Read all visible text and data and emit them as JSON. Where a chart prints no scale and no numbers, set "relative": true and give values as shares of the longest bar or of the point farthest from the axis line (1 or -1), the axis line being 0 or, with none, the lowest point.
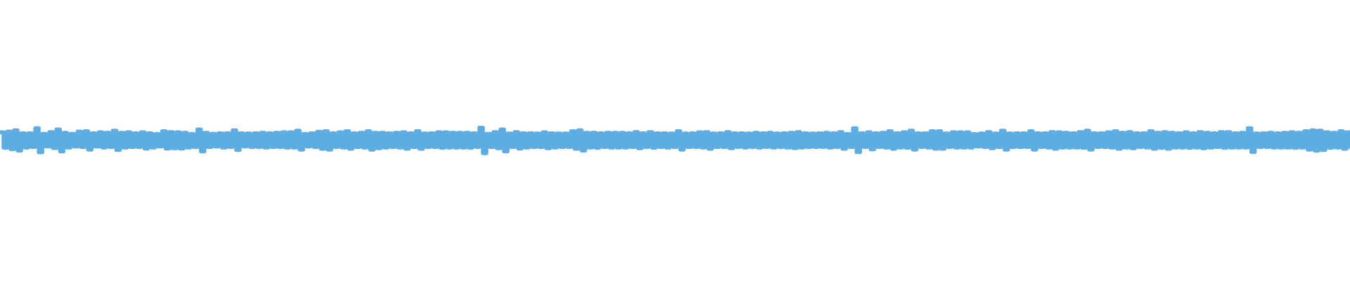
{
  "chart_data": {
    "type": "step",
    "relative": true,
    "color": "#5dade2",
    "categories": [
      null,
      null,
      null,
      null,
      null,
      null,
      null,
      null,
      null,
      null,
      null,
      null,
      null,
      null,
      null,
      null,
      null,
      null,
      null,
      null,
      null,
      null,
      null,
      null,
      null,
      null,
      null,
      null,
      null,
      null,
      null,
      null,
      null,
      null,
      null,
      null,
      null,
      null,
      null,
      null,
      null,
      null,
      null,
      null,
      null,
      null,
      null,
      null,
      null,
      null,
      null,
      null,
      null,
      null,
      null,
      null,
      null,
      null,
      null,
      null,
      null,
      null,
      null,
      null,
      null,
      null,
      null,
      null,
      null,
      null,
      null,
      null,
      null,
      null,
      null,
      null,
      null,
      null,
      null,
      null,
      null,
      null,
      null,
      null,
      null,
      null,
      null,
      null,
      null,
      null,
      null,
      null,
      null,
      null,
      null,
      null,
      null,
      null,
      null,
      null,
      null,
      null,
      null,
      null,
      null,
      null,
      null,
      null,
      null,
      null,
      null,
      null,
      null,
      null,
      null,
      null,
      null,
      null,
      null,
      null,
      null,
      null,
      null,
      null,
      null,
      null,
      null,
      null,
      null,
      null,
      null,
      null,
      null,
      null,
      null,
      null,
      null,
      null,
      null,
      null,
      null,
      null,
      null,
      null,
      null,
      null,
      null,
      null,
      null,
      null,
      null,
      null,
      null,
      null,
      null,
      null,
      null,
      null,
      null,
      null,
      null,
      null,
      null,
      null,
      null,
      null,
      null,
      null,
      null,
      null,
      null,
      null,
      null,
      null,
      null,
      null,
      null,
      null,
      null,
      null,
      null,
      null,
      null,
      null,
      null,
      null,
      null,
      null,
      null,
      null,
      null,
      null,
      null,
      null,
      null,
      null,
      null,
      null,
      null,
      null,
      null,
      null,
      null,
      null,
      null,
      null,
      null,
      null,
      null,
      null,
      null,
      null,
      null,
      null,
      null,
      null,
      null,
      null,
      null,
      null,
      null,
      null,
      null,
      null,
      null,
      null,
      null,
      null,
      null,
      null,
      null,
      null,
      null,
      null,
      null,
      null,
      null,
      null,
      null,
      null,
      null,
      null,
      null,
      null,
      null,
      null,
      null,
      null,
      null,
      null,
      null,
      null,
      null,
      null,
      null,
      null,
      null,
      null,
      null,
      null,
      null,
      null,
      null,
      null,
      null,
      null,
      null,
      null,
      null,
      null,
      null,
      null,
      null,
      null,
      null,
      null,
      null,
      null,
      null,
      null,
      null,
      null,
      null,
      null,
      null,
      null,
      null,
      null,
      null,
      null,
      null,
      null,
      null,
      null,
      null,
      null,
      null,
      null,
      null,
      null,
      null,
      null,
      null,
      null,
      null,
      null,
      null,
      null,
      null,
      null,
      null,
      null,
      null,
      null,
      null,
      null,
      null,
      null,
      null,
      null,
      null,
      null,
      null,
      null,
      null,
      null,
      null,
      null,
      null,
      null,
      null,
      null,
      null,
      null,
      null,
      null,
      null,
      null,
      null,
      null,
      null,
      null,
      null,
      null,
      null,
      null,
      null,
      null,
      null,
      null,
      null,
      null,
      null,
      null,
      null,
      null,
      null,
      null,
      null,
      null,
      null,
      null,
      null,
      null,
      null,
      null,
      null,
      null,
      null,
      null,
      null,
      null,
      null,
      null,
      null,
      null,
      null,
      null,
      null,
      null,
      null,
      null,
      null,
      null
    ],
    "values": [
      0.82,
      0.21,
      0.85,
      0.16,
      0.9,
      0.1,
      0.78,
      0.22,
      0.78,
      0.24,
      0.98,
      0.03,
      0.76,
      0.26,
      0.83,
      0.2,
      0.93,
      0.07,
      0.8,
      0.22,
      0.76,
      0.26,
      0.85,
      0.24,
      0.86,
      0.14,
      0.78,
      0.26,
      0.82,
      0.22,
      0.8,
      0.24,
      0.88,
      0.12,
      0.8,
      0.22,
      0.82,
      0.24,
      0.78,
      0.24,
      0.82,
      0.18,
      0.78,
      0.22,
      0.75,
      0.26,
      0.86,
      0.18,
      0.83,
      0.19,
      0.82,
      0.18,
      0.8,
      0.22,
      0.75,
      0.24,
      0.93,
      0.07,
      0.8,
      0.24,
      0.76,
      0.26,
      0.78,
      0.22,
      0.78,
      0.24,
      0.9,
      0.12,
      0.78,
      0.26,
      0.77,
      0.24,
      0.78,
      0.24,
      0.8,
      0.22,
      0.78,
      0.24,
      0.8,
      0.24,
      0.82,
      0.22,
      0.82,
      0.22,
      0.88,
      0.14,
      0.75,
      0.26,
      0.78,
      0.24,
      0.84,
      0.17,
      0.86,
      0.14,
      0.78,
      0.24,
      0.82,
      0.22,
      0.86,
      0.17,
      0.78,
      0.24,
      0.8,
      0.22,
      0.86,
      0.14,
      0.8,
      0.19,
      0.8,
      0.22,
      0.78,
      0.24,
      0.8,
      0.22,
      0.82,
      0.17,
      0.78,
      0.24,
      0.86,
      0.17,
      0.77,
      0.24,
      0.78,
      0.24,
      0.82,
      0.21,
      0.82,
      0.22,
      0.8,
      0.22,
      0.8,
      0.22,
      0.8,
      0.21,
      0.78,
      0.24,
      1,
      0,
      0.76,
      0.24,
      0.83,
      0.19,
      0.93,
      0.07,
      0.77,
      0.24,
      0.83,
      0.18,
      0.78,
      0.22,
      0.78,
      0.24,
      0.77,
      0.24,
      0.82,
      0.19,
      0.78,
      0.22,
      0.77,
      0.24,
      0.77,
      0.24,
      0.86,
      0.17,
      0.9,
      0.1,
      0.8,
      0.22,
      0.8,
      0.21,
      0.78,
      0.24,
      0.8,
      0.22,
      0.8,
      0.22,
      0.8,
      0.22,
      0.78,
      0.24,
      0.83,
      0.19,
      0.78,
      0.24,
      0.83,
      0.21,
      0.78,
      0.24,
      0.78,
      0.22,
      0.77,
      0.24,
      0.86,
      0.14,
      0.77,
      0.24,
      0.78,
      0.24,
      0.82,
      0.22,
      0.83,
      0.17,
      0.77,
      0.24,
      0.78,
      0.24,
      0.83,
      0.19,
      0.78,
      0.24,
      0.78,
      0.22,
      0.77,
      0.24,
      0.8,
      0.22,
      0.78,
      0.24,
      0.8,
      0.22,
      0.77,
      0.24,
      0.78,
      0.22,
      0.8,
      0.2,
      0.83,
      0.22,
      0.78,
      0.24,
      0.77,
      0.24,
      0.78,
      0.24,
      0.8,
      0.22,
      0.78,
      0.24,
      0.83,
      0.17,
      0.75,
      0.24,
      0.98,
      0.04,
      0.78,
      0.24,
      0.82,
      0.15,
      0.78,
      0.24,
      0.8,
      0.22,
      0.86,
      0.17,
      0.78,
      0.22,
      0.82,
      0.21,
      0.88,
      0.14,
      0.78,
      0.24,
      0.78,
      0.22,
      0.86,
      0.17,
      0.86,
      0.17,
      0.77,
      0.24,
      0.82,
      0.22,
      0.82,
      0.22,
      0.82,
      0.22,
      0.75,
      0.26,
      0.77,
      0.24,
      0.83,
      0.19,
      0.77,
      0.24,
      0.88,
      0.14,
      0.77,
      0.24,
      0.78,
      0.24,
      0.78,
      0.24,
      0.86,
      0.14,
      0.78,
      0.24,
      0.78,
      0.22,
      0.83,
      0.17,
      0.82,
      0.22,
      0.8,
      0.22,
      0.78,
      0.22,
      0.83,
      0.21,
      0.88,
      0.14,
      0.78,
      0.24,
      0.78,
      0.24,
      0.82,
      0.22,
      0.86,
      0.17,
      0.8,
      0.22,
      0.83,
      0.19,
      0.78,
      0.24,
      0.78,
      0.22,
      0.86,
      0.17,
      0.8,
      0.21,
      0.83,
      0.17,
      0.8,
      0.22,
      0.78,
      0.22,
      0.82,
      0.21,
      0.78,
      0.22,
      0.83,
      0.19,
      0.8,
      0.22,
      0.78,
      0.24,
      0.83,
      0.21,
      0.83,
      0.22,
      0.78,
      0.22,
      0.8,
      0.22,
      0.98,
      0.05,
      0.77,
      0.24,
      0.78,
      0.24,
      0.8,
      0.22,
      0.78,
      0.22,
      0.8,
      0.22,
      0.82,
      0.21,
      0.8,
      0.22,
      0.86,
      0.14,
      0.9,
      0.1,
      0.88,
      0.12,
      0.82,
      0.21,
      0.8,
      0.22,
      0.86,
      0.17,
      0.82,
      0.17
    ]
  }
}
